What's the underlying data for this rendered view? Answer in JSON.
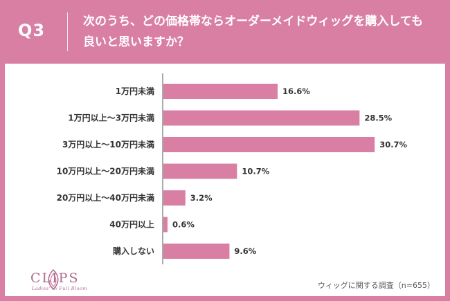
{
  "header": {
    "q_label": "Q3",
    "question": "次のうち、どの価格帯ならオーダーメイドウィッグを購入しても良いと思いますか？"
  },
  "brand": {
    "name": "CLIPS",
    "tagline": "Ladies' in Full Bloom"
  },
  "source_note": "ウィッグに関する調査（n=655）",
  "colors": {
    "background": "#d97fa3",
    "bar": "#d97fa3",
    "panel": "#ffffff"
  },
  "chart_data": {
    "type": "bar",
    "orientation": "horizontal",
    "categories": [
      "1万円未満",
      "1万円以上～3万円未満",
      "3万円以上～10万円未満",
      "10万円以上～20万円未満",
      "20万円以上～40万円未満",
      "40万円以上",
      "購入しない"
    ],
    "values": [
      16.6,
      28.5,
      30.7,
      10.7,
      3.2,
      0.6,
      9.6
    ],
    "value_labels": [
      "16.6%",
      "28.5%",
      "30.7%",
      "10.7%",
      "3.2%",
      "0.6%",
      "9.6%"
    ],
    "unit": "%",
    "xlim": [
      0,
      34
    ],
    "title": "",
    "xlabel": "",
    "ylabel": ""
  }
}
